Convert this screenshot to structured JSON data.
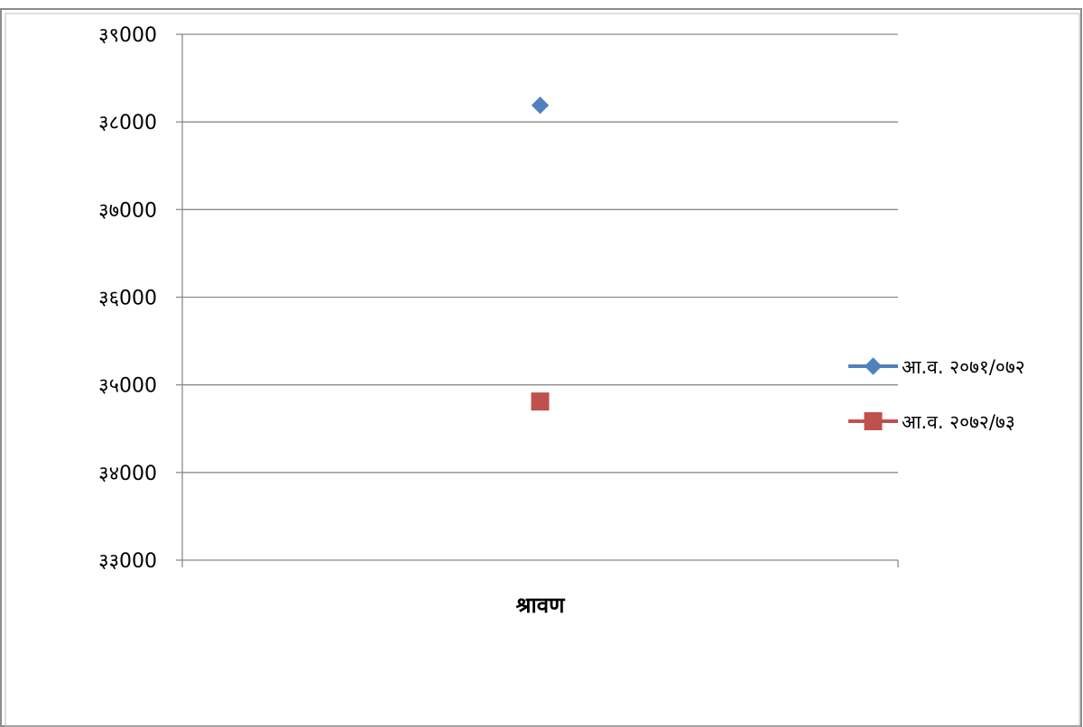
{
  "chart_data": {
    "type": "scatter",
    "categories": [
      "श्रावण"
    ],
    "series": [
      {
        "name": "आ.व. २०७१/०७२",
        "values": [
          38190
        ],
        "color": "#4F81BD",
        "marker": "diamond"
      },
      {
        "name": "आ.व. २०७२/७३",
        "values": [
          34810
        ],
        "color": "#C0504D",
        "marker": "square"
      }
    ],
    "y_ticks": [
      "३३000",
      "३४000",
      "३५000",
      "३६000",
      "३७000",
      "३८000",
      "३९000"
    ],
    "ylim": [
      33000,
      39000
    ],
    "y_step": 1000,
    "grid": true,
    "legend": "right"
  }
}
